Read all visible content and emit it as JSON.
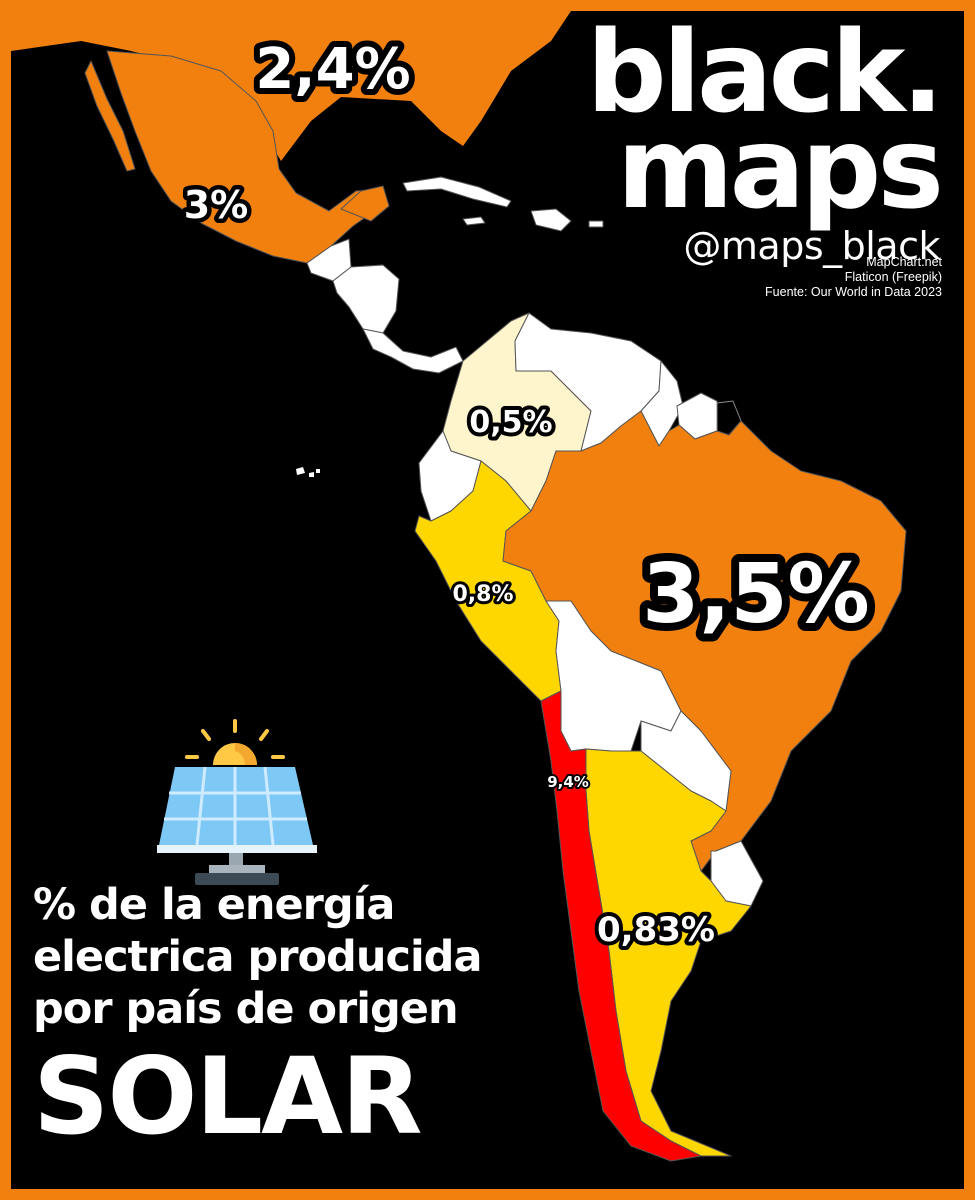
{
  "brand": {
    "line1": "black.",
    "line2": "maps",
    "handle": "@maps_black"
  },
  "credits": [
    "MapChart.net",
    "Flaticon (Freepik)",
    "Fuente: Our World in Data 2023"
  ],
  "title": {
    "line1": "% de la energía",
    "line2": "electrica producida",
    "line3": "por país de origen",
    "source": "SOLAR"
  },
  "labels": {
    "usa": "2,4%",
    "mexico": "3%",
    "colombia": "0,5%",
    "brazil": "3,5%",
    "peru": "0,8%",
    "chile": "9,4%",
    "argentina": "0,83%"
  },
  "colors": {
    "frame": "#F2800F",
    "high": "#F2800F",
    "chile": "#FF0000",
    "medium": "#FFD700",
    "low": "#FFF5CC",
    "no_data": "#FFFFFF",
    "background": "#000000"
  },
  "icon": "solar-panel-icon"
}
